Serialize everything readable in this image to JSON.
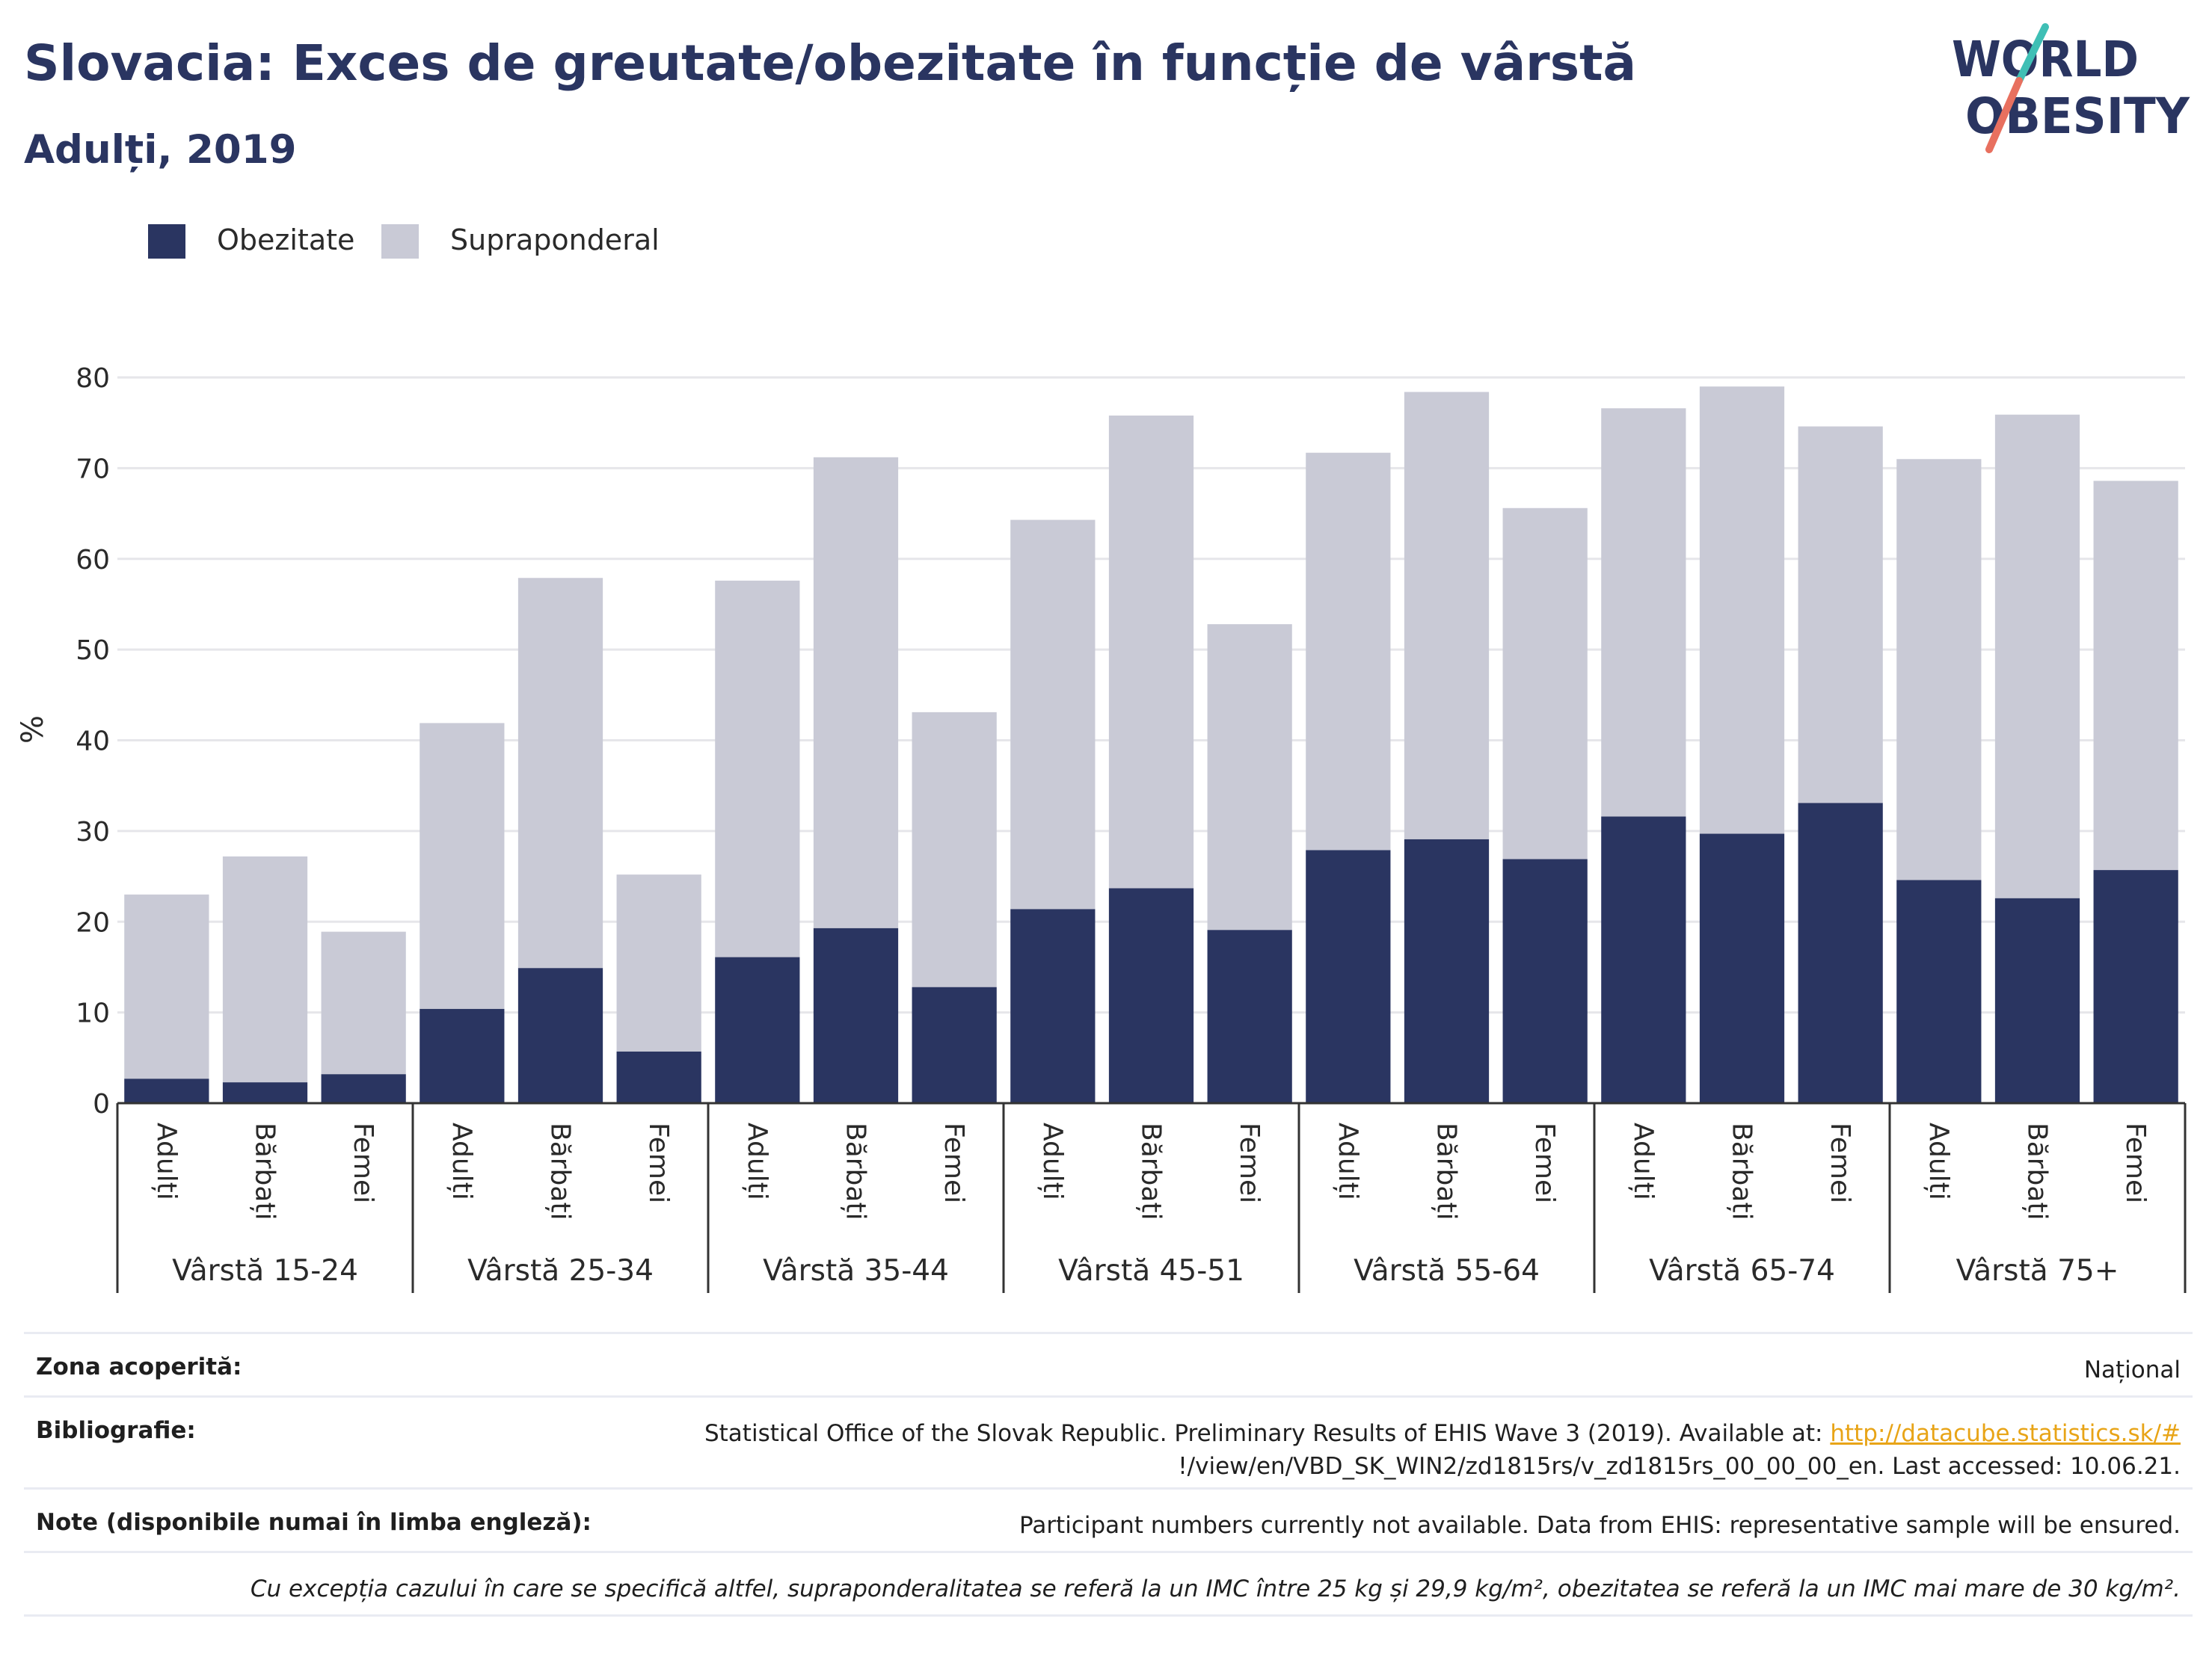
{
  "header": {
    "title": "Slovacia: Exces de greutate/obezitate în funcție de vârstă",
    "subtitle": "Adulți, 2019"
  },
  "logo": {
    "line1": "WORLD",
    "line2": "OBESITY"
  },
  "colors": {
    "obesity": "#2a3561",
    "overweight": "#c9cad6",
    "accent_teal": "#3fbfb5",
    "accent_coral": "#e8705f",
    "link": "#e8a417"
  },
  "legend": [
    {
      "label": "Obezitate",
      "color": "#2a3561"
    },
    {
      "label": "Supraponderal",
      "color": "#c9cad6"
    }
  ],
  "chart_data": {
    "type": "bar",
    "stacked": true,
    "ylabel": "%",
    "ylim": [
      0,
      80
    ],
    "yticks": [
      0,
      10,
      20,
      30,
      40,
      50,
      60,
      70,
      80
    ],
    "grid": true,
    "legend_position": "top-left",
    "groups": [
      "Vârstă 15-24",
      "Vârstă 25-34",
      "Vârstă 35-44",
      "Vârstă 45-51",
      "Vârstă 55-64",
      "Vârstă 65-74",
      "Vârstă 75+"
    ],
    "subcategories": [
      "Adulți",
      "Bărbați",
      "Femei"
    ],
    "series": [
      {
        "name": "Obezitate",
        "color": "#2a3561",
        "values": [
          2.7,
          2.3,
          3.2,
          10.4,
          14.9,
          5.7,
          16.1,
          19.3,
          12.8,
          21.4,
          23.7,
          19.1,
          27.9,
          29.1,
          26.9,
          31.6,
          29.7,
          33.1,
          24.6,
          22.6,
          25.7
        ]
      },
      {
        "name": "Supraponderal",
        "color": "#c9cad6",
        "values": [
          20.3,
          24.9,
          15.7,
          31.5,
          43.0,
          19.5,
          41.5,
          51.9,
          30.3,
          42.9,
          52.1,
          33.7,
          43.8,
          49.3,
          38.7,
          45.0,
          49.3,
          41.5,
          46.4,
          53.3,
          42.9
        ]
      }
    ]
  },
  "footer": {
    "coverage_label": "Zona acoperită:",
    "coverage_value": "Național",
    "bibliography_label": "Bibliografie:",
    "bibliography_text": "Statistical Office of the Slovak Republic. Preliminary Results of EHIS Wave 3 (2019). Available at: ",
    "bibliography_link": "http://datacube.statistics.sk/#",
    "bibliography_text2": "!/view/en/VBD_SK_WIN2/zd1815rs/v_zd1815rs_00_00_00_en. Last accessed: 10.06.21.",
    "notes_label": "Note (disponibile numai în limba engleză):",
    "notes_value": "Participant numbers currently not available. Data from EHIS: representative sample will be ensured.",
    "definition": "Cu excepția cazului în care se specifică altfel, supraponderalitatea se referă la un IMC între 25 kg și 29,9 kg/m², obezitatea se referă la un IMC mai mare de 30 kg/m²."
  }
}
